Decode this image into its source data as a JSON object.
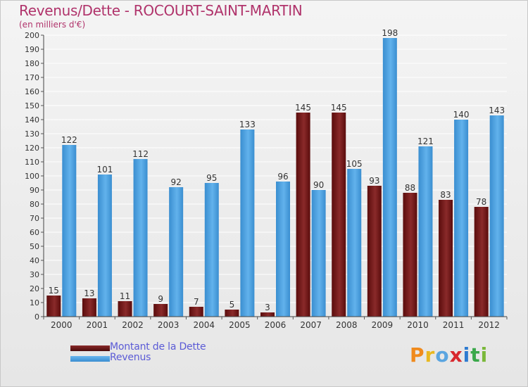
{
  "header": {
    "title": "Revenus/Dette - ROCOURT-SAINT-MARTIN",
    "subtitle": "(en milliers d'€)"
  },
  "legend": {
    "items": [
      {
        "label": "Montant de la Dette",
        "color": "#7a1414"
      },
      {
        "label": "Revenus",
        "color": "#4a9ee0"
      }
    ]
  },
  "brand": {
    "letters": [
      "P",
      "r",
      "o",
      "x",
      "i",
      "t",
      "i"
    ],
    "colors": [
      "#f08a1c",
      "#e8b820",
      "#5aa5e0",
      "#d8282e",
      "#2e7bd0",
      "#3aa84a",
      "#7ab83a"
    ]
  },
  "chart_data": {
    "type": "bar",
    "categories": [
      "2000",
      "2001",
      "2002",
      "2003",
      "2004",
      "2005",
      "2006",
      "2007",
      "2008",
      "2009",
      "2010",
      "2011",
      "2012"
    ],
    "series": [
      {
        "name": "Montant de la Dette",
        "color": "#7a1414",
        "values": [
          15,
          13,
          11,
          9,
          7,
          5,
          3,
          145,
          145,
          93,
          88,
          83,
          78
        ]
      },
      {
        "name": "Revenus",
        "color": "#4a9ee0",
        "values": [
          122,
          101,
          112,
          92,
          95,
          133,
          96,
          90,
          105,
          198,
          121,
          140,
          143
        ]
      }
    ],
    "ylim": [
      0,
      200
    ],
    "ytick_step": 10,
    "grid": true,
    "data_labels": true,
    "legend_position": "bottom-left"
  }
}
